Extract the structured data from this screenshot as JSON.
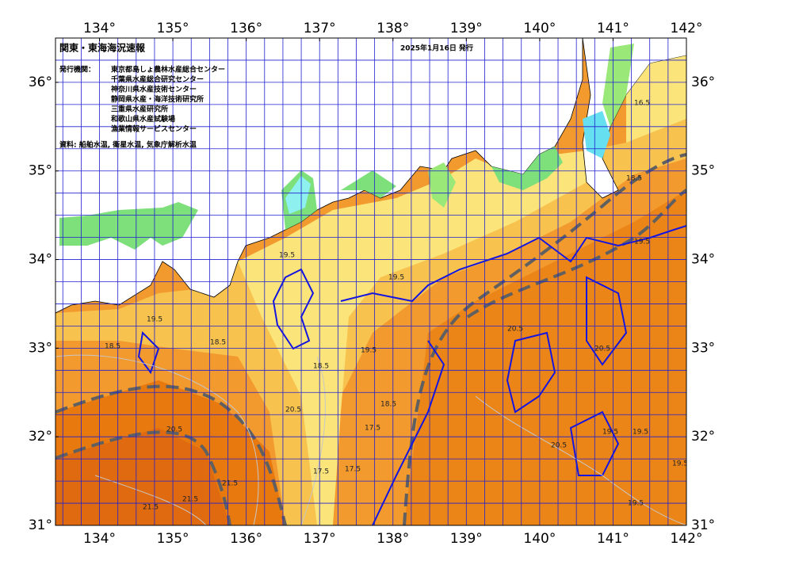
{
  "header": {
    "title": "関東・東海海況速報",
    "date": "2025年1月16日 発行",
    "issuer_label": "発行機関：",
    "issuers": [
      "東京都島しょ農林水産総合センター",
      "千葉県水産総合研究センター",
      "神奈川県水産技術センター",
      "静岡県水産・海洋技術研究所",
      "三重県水産研究所",
      "和歌山県水産試験場",
      "漁業情報サービスセンター"
    ],
    "sources": "資料: 船舶水温, 衛星水温, 気象庁解析水温"
  },
  "map": {
    "xlim": [
      133.4,
      142
    ],
    "ylim": [
      31,
      36.5
    ],
    "grid_step": 0.25,
    "xticks": [
      {
        "value": 134,
        "label": "134°"
      },
      {
        "value": 135,
        "label": "135°"
      },
      {
        "value": 136,
        "label": "136°"
      },
      {
        "value": 137,
        "label": "137°"
      },
      {
        "value": 138,
        "label": "138°"
      },
      {
        "value": 139,
        "label": "139°"
      },
      {
        "value": 140,
        "label": "140°"
      },
      {
        "value": 141,
        "label": "141°"
      },
      {
        "value": 142,
        "label": "142°"
      }
    ],
    "yticks": [
      {
        "value": 31,
        "label": "31°"
      },
      {
        "value": 32,
        "label": "32°"
      },
      {
        "value": 33,
        "label": "33°"
      },
      {
        "value": 34,
        "label": "34°"
      },
      {
        "value": 35,
        "label": "35°"
      },
      {
        "value": 36,
        "label": "36°"
      }
    ],
    "contour_labels": [
      "18.5",
      "19.5",
      "18.5",
      "19.5",
      "20.5",
      "21.5",
      "21.5",
      "21.5",
      "20.5",
      "19.5",
      "18.5",
      "17.5",
      "17.5",
      "17.5",
      "18.5",
      "19.5",
      "20.5",
      "20.5",
      "19.5",
      "19.5",
      "20.5",
      "19.5",
      "19.5",
      "16.5",
      "18.5",
      "19.5"
    ]
  }
}
